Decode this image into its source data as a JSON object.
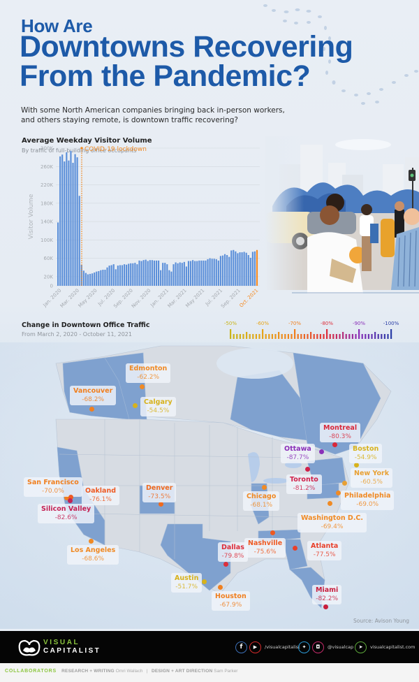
{
  "header": {
    "title_line1": "How Are",
    "title_line2": "Downtowns Recovering",
    "title_line3": "From the Pandemic?",
    "subtitle_line1": "With some North American companies bringing back in-person workers,",
    "subtitle_line2": "and others staying remote, is downtown traffic recovering?"
  },
  "colors": {
    "title_blue": "#1d5aa8",
    "bar_blue": "#5b8fd9",
    "lockdown_orange": "#f08a24",
    "latest_bar_orange": "#f5891f",
    "brand_green": "#8cc63f",
    "footer_black": "#050505"
  },
  "bar_chart": {
    "title": "Average Weekday Visitor Volume",
    "subtitle": "By traffic of full-building office occupants",
    "ylabel": "Visitor Volume",
    "annotation": "COVID-19 lockdown",
    "y_ticks": [
      "300K",
      "260K",
      "220K",
      "180K",
      "140K",
      "100K",
      "60K",
      "20K",
      "0"
    ],
    "x_ticks": [
      "Jan. 2020",
      "Mar. 2020",
      "May 2020",
      "Jul. 2020",
      "Sep. 2020",
      "Nov. 2020",
      "Jan. 2021",
      "Mar. 2021",
      "May 2021",
      "Jul. 2021",
      "Sep. 2021",
      "Oct. 2021"
    ]
  },
  "chart_data": [
    {
      "type": "bar",
      "title": "Average Weekday Visitor Volume",
      "subtitle": "By traffic of full-building office occupants",
      "xlabel": "",
      "ylabel": "Visitor Volume",
      "ylim": [
        0,
        300000
      ],
      "y_ticks": [
        0,
        20000,
        60000,
        100000,
        140000,
        180000,
        220000,
        260000,
        300000
      ],
      "x_tick_labels": [
        "Jan. 2020",
        "Mar. 2020",
        "May 2020",
        "Jul. 2020",
        "Sep. 2020",
        "Nov. 2020",
        "Jan. 2021",
        "Mar. 2021",
        "May 2021",
        "Jul. 2021",
        "Sep. 2021",
        "Oct. 2021"
      ],
      "grid": true,
      "annotations": [
        {
          "text": "COVID-19 lockdown",
          "x": "Mar. 2020 (week of Mar 16)",
          "style": "dotted orange vertical line"
        }
      ],
      "highlight": {
        "label": "Oct. 2021",
        "color": "#f5891f"
      },
      "series": [
        {
          "name": "Weekly average weekday visitors",
          "frequency": "weekly, Jan 2020 – Oct 2021",
          "values": [
            138000,
            282000,
            286000,
            271000,
            291000,
            273000,
            294000,
            268000,
            287000,
            280000,
            196000,
            46000,
            33000,
            28000,
            25000,
            26000,
            27000,
            29000,
            31000,
            32000,
            34000,
            35000,
            35000,
            40000,
            44000,
            45000,
            47000,
            36000,
            44000,
            45000,
            45000,
            47000,
            46000,
            48000,
            49000,
            49000,
            50000,
            47000,
            55000,
            54000,
            56000,
            57000,
            54000,
            56000,
            56000,
            55000,
            55000,
            55000,
            34000,
            50000,
            50000,
            47000,
            34000,
            31000,
            47000,
            51000,
            49000,
            51000,
            50000,
            52000,
            42000,
            54000,
            54000,
            56000,
            54000,
            54000,
            55000,
            55000,
            55000,
            55000,
            58000,
            60000,
            59000,
            59000,
            58000,
            55000,
            65000,
            66000,
            69000,
            67000,
            63000,
            77000,
            78000,
            75000,
            71000,
            73000,
            73000,
            74000,
            72000,
            67000,
            61000,
            74000,
            75000,
            78000
          ]
        }
      ]
    },
    {
      "type": "map",
      "title": "Change in Downtown Office Traffic",
      "subtitle": "From March 2, 2020 - October 11, 2021",
      "legend": {
        "type": "color-scale",
        "ticks": [
          "-50%",
          "-60%",
          "-70%",
          "-80%",
          "-90%",
          "-100%"
        ],
        "colors": [
          "#c9b41a",
          "#e6a51b",
          "#f07f1f",
          "#dd2e3b",
          "#8a2fb8",
          "#2b3ea6"
        ]
      },
      "categories": [
        "Edmonton",
        "Vancouver",
        "Calgary",
        "Montreal",
        "Ottawa",
        "Boston",
        "Toronto",
        "New York",
        "San Francisco",
        "Oakland",
        "Denver",
        "Chicago",
        "Philadelphia",
        "Silicon Valley",
        "Washington D.C.",
        "Los Angeles",
        "Dallas",
        "Nashville",
        "Atlanta",
        "Austin",
        "Houston",
        "Miami"
      ],
      "values": [
        -62.2,
        -68.2,
        -54.5,
        -80.3,
        -87.7,
        -54.9,
        -81.2,
        -60.5,
        -70.0,
        -76.1,
        -73.5,
        -68.1,
        -69.0,
        -82.6,
        -69.4,
        -68.6,
        -79.8,
        -75.6,
        -77.5,
        -51.7,
        -67.9,
        -82.2
      ],
      "source": "Avison Young"
    }
  ],
  "map": {
    "title": "Change in Downtown Office Traffic",
    "subtitle": "From March 2, 2020 - October 11, 2021",
    "legend_ticks": [
      "-50%",
      "-60%",
      "-70%",
      "-80%",
      "-90%",
      "-100%"
    ],
    "cities": [
      {
        "name": "Edmonton",
        "value": "-62.2%",
        "color": "#f08a24"
      },
      {
        "name": "Vancouver",
        "value": "-68.2%",
        "color": "#f07f1f"
      },
      {
        "name": "Calgary",
        "value": "-54.5%",
        "color": "#d7b21c"
      },
      {
        "name": "Montreal",
        "value": "-80.3%",
        "color": "#d9283a"
      },
      {
        "name": "Ottawa",
        "value": "-87.7%",
        "color": "#8a2fb8"
      },
      {
        "name": "Boston",
        "value": "-54.9%",
        "color": "#d7b21c"
      },
      {
        "name": "Toronto",
        "value": "-81.2%",
        "color": "#d0214a"
      },
      {
        "name": "New York",
        "value": "-60.5%",
        "color": "#e8a033"
      },
      {
        "name": "San Francisco",
        "value": "-70.0%",
        "color": "#f07f1f"
      },
      {
        "name": "Oakland",
        "value": "-76.1%",
        "color": "#ee5a23"
      },
      {
        "name": "Denver",
        "value": "-73.5%",
        "color": "#ef6a1f"
      },
      {
        "name": "Chicago",
        "value": "-68.1%",
        "color": "#f08a24"
      },
      {
        "name": "Philadelphia",
        "value": "-69.0%",
        "color": "#f08a24"
      },
      {
        "name": "Silicon Valley",
        "value": "-82.6%",
        "color": "#c42153"
      },
      {
        "name": "Washington D.C.",
        "value": "-69.4%",
        "color": "#f08a24"
      },
      {
        "name": "Los Angeles",
        "value": "-68.6%",
        "color": "#f08a24"
      },
      {
        "name": "Dallas",
        "value": "-79.8%",
        "color": "#dd2e3b"
      },
      {
        "name": "Nashville",
        "value": "-75.6%",
        "color": "#ee5a23"
      },
      {
        "name": "Atlanta",
        "value": "-77.5%",
        "color": "#e8402b"
      },
      {
        "name": "Austin",
        "value": "-51.7%",
        "color": "#d7b21c"
      },
      {
        "name": "Houston",
        "value": "-67.9%",
        "color": "#f07f1f"
      },
      {
        "name": "Miami",
        "value": "-82.2%",
        "color": "#c81e3d"
      }
    ],
    "source": "Source: Avison Young"
  },
  "footer": {
    "brand_line1": "VISUAL",
    "brand_line2": "CAPITALIST",
    "social_handle_1": "/visualcapitalist",
    "social_handle_2": "@visualcap",
    "website": "visualcapitalist.com",
    "icons": [
      "facebook-icon",
      "youtube-icon",
      "twitter-icon",
      "instagram-icon",
      "cursor-icon"
    ]
  },
  "collaborators": {
    "heading": "COLLABORATORS",
    "role1": "RESEARCH + WRITING",
    "name1": "Omri Wallach",
    "separator": "|",
    "role2": "DESIGN + ART DIRECTION",
    "name2": "Sam Parker"
  }
}
